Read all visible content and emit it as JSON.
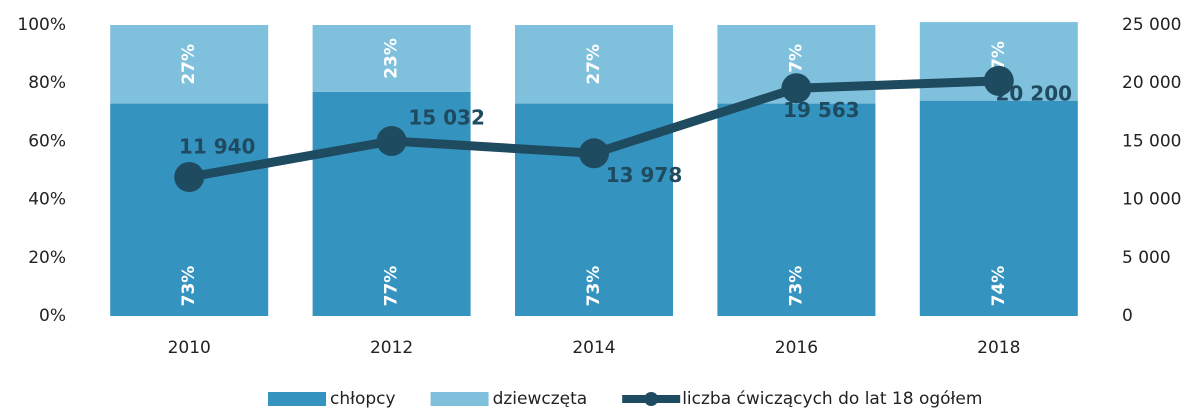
{
  "chart_data": {
    "type": "bar-line",
    "categories": [
      "2010",
      "2012",
      "2014",
      "2016",
      "2018"
    ],
    "series": [
      {
        "name": "chłopcy",
        "color": "#3593bf",
        "values": [
          73,
          77,
          73,
          73,
          74
        ],
        "value_labels": [
          "73%",
          "77%",
          "73%",
          "73%",
          "74%"
        ],
        "stacked": true
      },
      {
        "name": "dziewczęta",
        "color": "#7fc1dd",
        "values": [
          27,
          23,
          27,
          27,
          27
        ],
        "value_labels": [
          "27%",
          "23%",
          "27%",
          "27%",
          "27%"
        ],
        "stacked": true
      },
      {
        "name": "liczba ćwiczących do lat 18 ogółem",
        "color": "#1f4b61",
        "type": "line",
        "axis": "y2",
        "values": [
          11940,
          15032,
          13978,
          19563,
          20200
        ],
        "value_labels": [
          "11 940",
          "15 032",
          "13 978",
          "19 563",
          "20 200"
        ]
      }
    ],
    "ylim": [
      0,
      100
    ],
    "yticks": [
      {
        "value": 0,
        "label": "0%"
      },
      {
        "value": 20,
        "label": "20%"
      },
      {
        "value": 40,
        "label": "40%"
      },
      {
        "value": 60,
        "label": "60%"
      },
      {
        "value": 80,
        "label": "80%"
      },
      {
        "value": 100,
        "label": "100%"
      }
    ],
    "y2lim": [
      0,
      25000
    ],
    "y2ticks": [
      0,
      {
        "value": 5000,
        "label": "5 000"
      },
      {
        "value": 10000,
        "label": "10 000"
      },
      {
        "value": 15000,
        "label": "15 000"
      },
      {
        "value": 20000,
        "label": "20 000"
      },
      {
        "value": 25000,
        "label": "25 000"
      }
    ],
    "legend": "bottom"
  }
}
